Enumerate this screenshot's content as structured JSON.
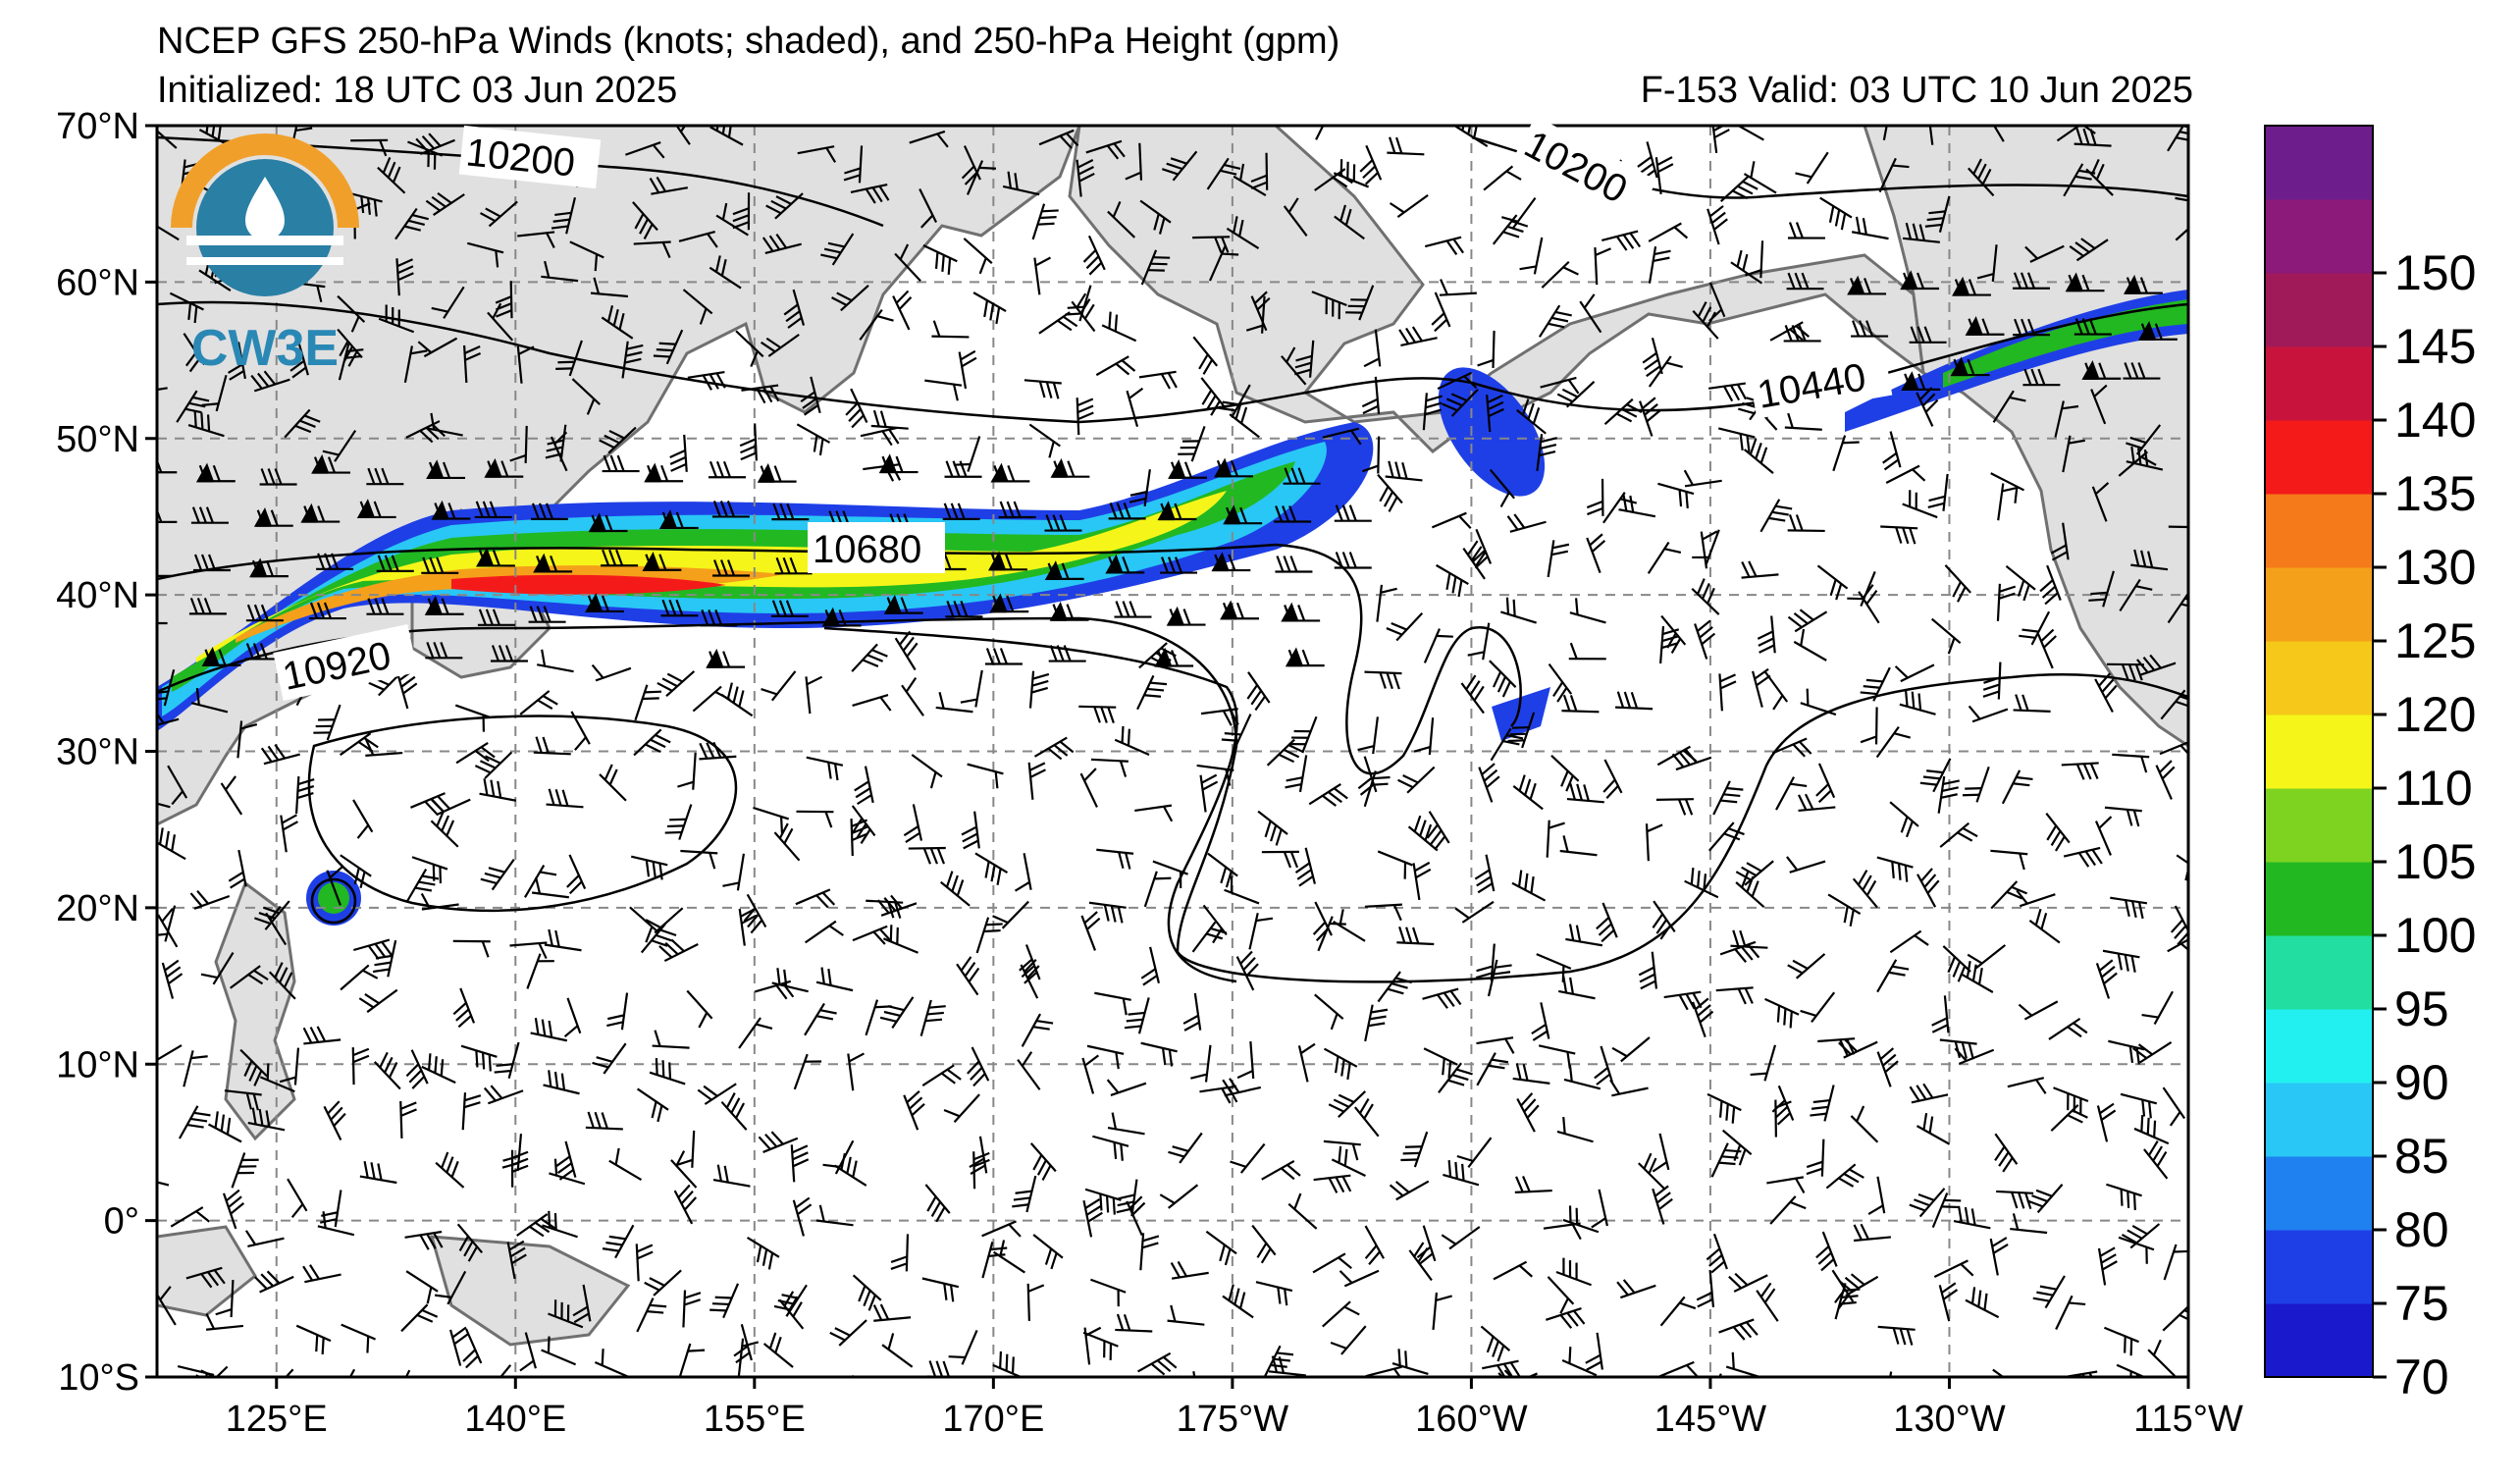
{
  "header": {
    "title": "NCEP GFS 250-hPa Winds (knots; shaded), and 250-hPa Height (gpm)",
    "initialized": "Initialized: 18 UTC 03 Jun 2025",
    "valid": "F-153  Valid: 03 UTC 10 Jun 2025"
  },
  "logo": {
    "text": "CW3E"
  },
  "map": {
    "lon_labels": [
      "125°E",
      "140°E",
      "155°E",
      "170°E",
      "175°W",
      "160°W",
      "145°W",
      "130°W",
      "115°W"
    ],
    "lat_labels": [
      "70°N",
      "60°N",
      "50°N",
      "40°N",
      "30°N",
      "20°N",
      "10°N",
      "0°",
      "10°S"
    ],
    "height_contour_labels": [
      "10200",
      "10200",
      "10440",
      "10680",
      "10920"
    ],
    "land_color": "#e0e0e0",
    "contour_color": "#000000",
    "grid_style": "dashed gray"
  },
  "colorbar": {
    "ticks": [
      "70",
      "75",
      "80",
      "85",
      "90",
      "95",
      "100",
      "105",
      "110",
      "120",
      "125",
      "130",
      "135",
      "140",
      "145",
      "150"
    ],
    "colors": [
      "#1a1acc",
      "#1f3fe6",
      "#1f80f0",
      "#29c7f5",
      "#22f0f0",
      "#22dea0",
      "#22b822",
      "#7ed321",
      "#f5f51a",
      "#f5c81a",
      "#f5a01a",
      "#f57a1a",
      "#f51a1a",
      "#c8143c",
      "#a01a5a",
      "#8c1a7a",
      "#6e1e8c"
    ]
  }
}
